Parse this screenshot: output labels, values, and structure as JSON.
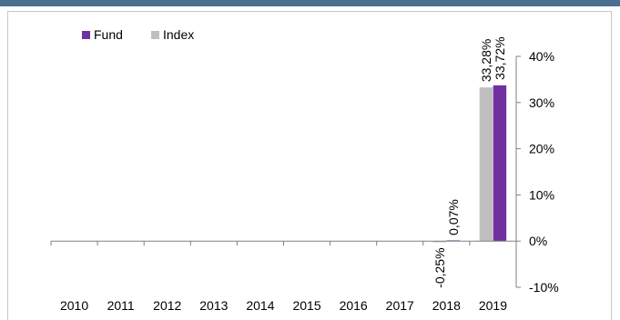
{
  "header_bar_color": "#4a6f8f",
  "chart_data": {
    "type": "bar",
    "categories": [
      "2010",
      "2011",
      "2012",
      "2013",
      "2014",
      "2015",
      "2016",
      "2017",
      "2018",
      "2019"
    ],
    "series": [
      {
        "name": "Fund",
        "color": "#7030a0",
        "values": [
          null,
          null,
          null,
          null,
          null,
          null,
          null,
          null,
          0.07,
          33.72
        ]
      },
      {
        "name": "Index",
        "color": "#bfbfbf",
        "values": [
          null,
          null,
          null,
          null,
          null,
          null,
          null,
          null,
          -0.25,
          33.28
        ]
      }
    ],
    "data_labels": [
      {
        "series": "Index",
        "category": "2018",
        "text": "-0,25%"
      },
      {
        "series": "Fund",
        "category": "2018",
        "text": "0,07%"
      },
      {
        "series": "Index",
        "category": "2019",
        "text": "33,28%"
      },
      {
        "series": "Fund",
        "category": "2019",
        "text": "33,72%"
      }
    ],
    "ylim": [
      -10,
      40
    ],
    "yticks": [
      40,
      30,
      20,
      10,
      0,
      -10
    ],
    "ytick_labels": [
      "40%",
      "30%",
      "20%",
      "10%",
      "0%",
      "-10%"
    ],
    "y_axis_position": "right",
    "legend_position": "top-left",
    "grid": false,
    "title": "",
    "xlabel": "",
    "ylabel": ""
  }
}
